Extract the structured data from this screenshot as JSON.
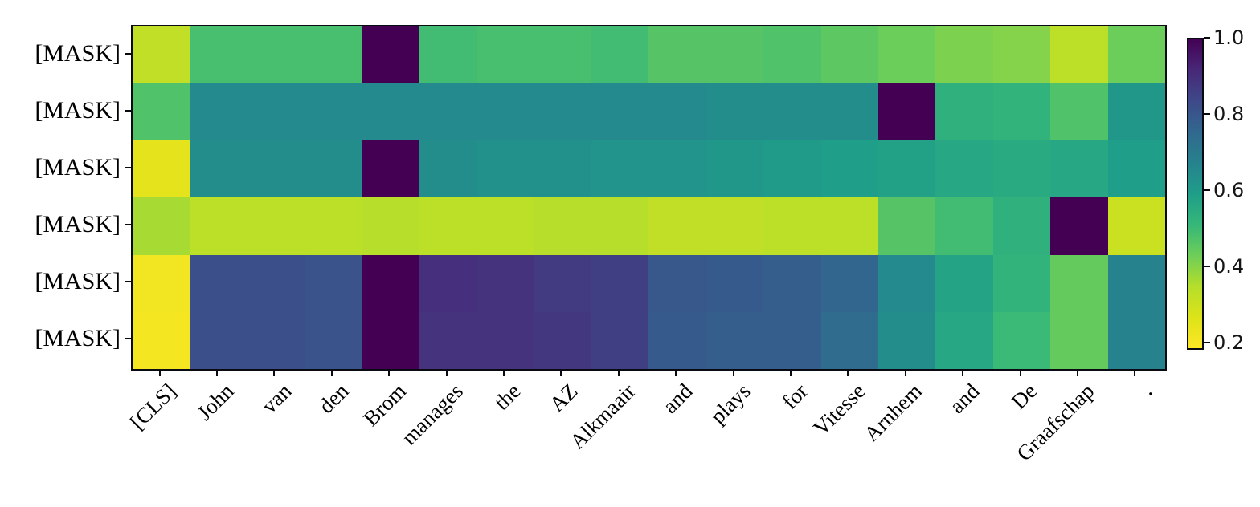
{
  "figure": {
    "background_color": "#ffffff",
    "axis_color": "#0a0a12"
  },
  "chart_data": {
    "type": "heatmap",
    "title": "",
    "xlabel": "",
    "ylabel": "",
    "x_labels": [
      "[CLS]",
      "John",
      "van",
      "den",
      "Brom",
      "manages",
      "the",
      "AZ",
      "Alkmaair",
      "and",
      "plays",
      "for",
      "Vitesse",
      "Arnhem",
      "and",
      "De",
      "Graafschap",
      "."
    ],
    "y_labels": [
      "[MASK]",
      "[MASK]",
      "[MASK]",
      "[MASK]",
      "[MASK]",
      "[MASK]"
    ],
    "values": [
      [
        0.32,
        0.48,
        0.48,
        0.48,
        1.0,
        0.49,
        0.48,
        0.48,
        0.49,
        0.46,
        0.46,
        0.47,
        0.45,
        0.43,
        0.41,
        0.4,
        0.33,
        0.43
      ],
      [
        0.47,
        0.65,
        0.65,
        0.65,
        0.65,
        0.65,
        0.65,
        0.65,
        0.65,
        0.65,
        0.64,
        0.64,
        0.64,
        1.0,
        0.53,
        0.52,
        0.47,
        0.61
      ],
      [
        0.24,
        0.64,
        0.64,
        0.64,
        1.0,
        0.64,
        0.63,
        0.63,
        0.62,
        0.62,
        0.61,
        0.6,
        0.59,
        0.58,
        0.56,
        0.55,
        0.56,
        0.59
      ],
      [
        0.36,
        0.33,
        0.33,
        0.33,
        0.34,
        0.33,
        0.33,
        0.34,
        0.34,
        0.32,
        0.32,
        0.33,
        0.33,
        0.46,
        0.49,
        0.53,
        1.0,
        0.3
      ],
      [
        0.21,
        0.82,
        0.82,
        0.81,
        1.0,
        0.9,
        0.89,
        0.87,
        0.86,
        0.8,
        0.79,
        0.78,
        0.76,
        0.65,
        0.57,
        0.52,
        0.44,
        0.67
      ],
      [
        0.2,
        0.82,
        0.82,
        0.81,
        1.0,
        0.89,
        0.89,
        0.88,
        0.86,
        0.79,
        0.78,
        0.78,
        0.74,
        0.64,
        0.56,
        0.5,
        0.44,
        0.67
      ]
    ],
    "colormap": "viridis_reversed",
    "color_scale": {
      "vmin": 0.18,
      "vmax": 1.0
    },
    "viridis_stops": [
      [
        0.0,
        "#440154"
      ],
      [
        0.1,
        "#482878"
      ],
      [
        0.2,
        "#3e4989"
      ],
      [
        0.3,
        "#31688e"
      ],
      [
        0.4,
        "#26828e"
      ],
      [
        0.5,
        "#1f9e89"
      ],
      [
        0.6,
        "#35b779"
      ],
      [
        0.7,
        "#6ece58"
      ],
      [
        0.8,
        "#b5de2b"
      ],
      [
        0.9,
        "#dce319"
      ],
      [
        1.0,
        "#fde725"
      ]
    ],
    "colorbar": {
      "position": "right",
      "tick_values": [
        1.0,
        0.8,
        0.6,
        0.4,
        0.2
      ],
      "tick_labels": [
        "1.0",
        "0.8",
        "0.6",
        "0.4",
        "0.2"
      ]
    },
    "grid": false,
    "x_tick_rotation_deg": 45
  }
}
